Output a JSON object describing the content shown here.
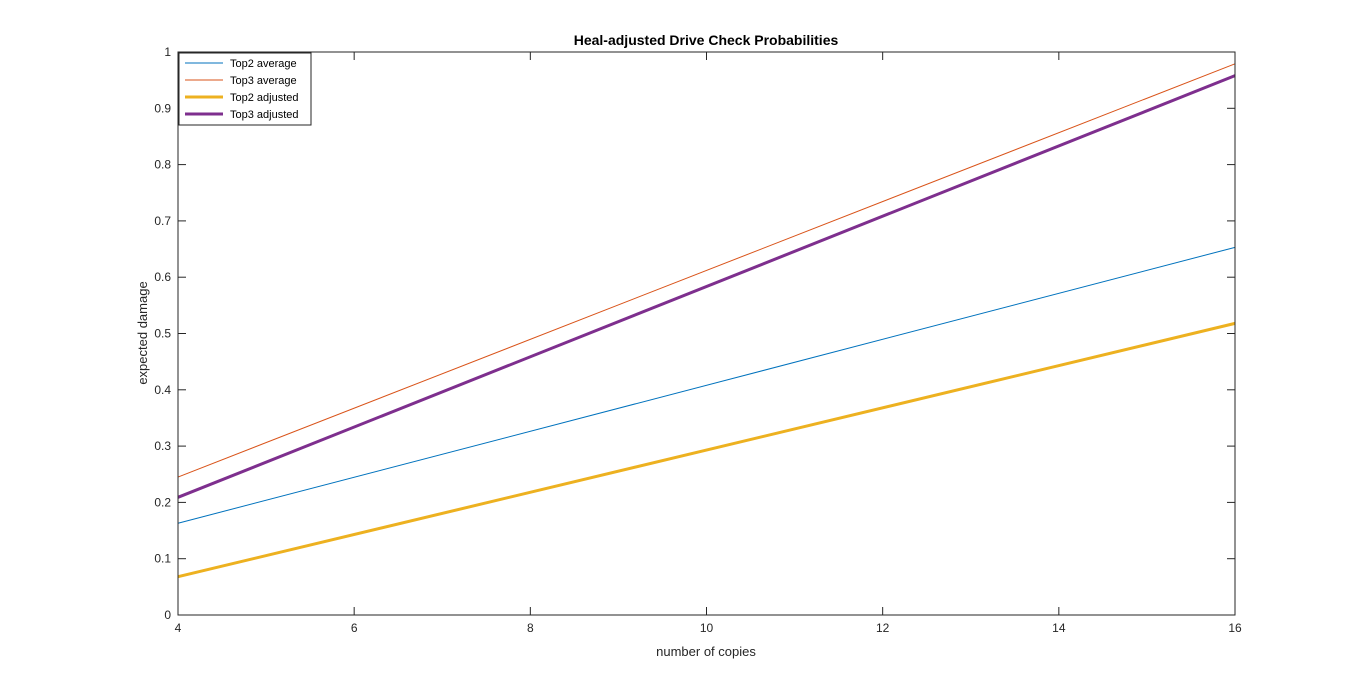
{
  "chart_data": {
    "type": "line",
    "title": "Heal-adjusted Drive Check Probabilities",
    "xlabel": "number of copies",
    "ylabel": "expected damage",
    "xlim": [
      4,
      16
    ],
    "ylim": [
      0,
      1
    ],
    "xticks": [
      4,
      6,
      8,
      10,
      12,
      14,
      16
    ],
    "yticks": [
      0,
      0.1,
      0.2,
      0.3,
      0.4,
      0.5,
      0.6,
      0.7,
      0.8,
      0.9,
      1
    ],
    "grid": false,
    "legend_location": "top-left",
    "series": [
      {
        "name": "Top2 average",
        "color": "#0072BD",
        "line_weight": "thin",
        "x": [
          4,
          16
        ],
        "y": [
          0.163,
          0.653
        ]
      },
      {
        "name": "Top3 average",
        "color": "#D95319",
        "line_weight": "thin",
        "x": [
          4,
          16
        ],
        "y": [
          0.245,
          0.979
        ]
      },
      {
        "name": "Top2 adjusted",
        "color": "#EDB120",
        "line_weight": "thick",
        "x": [
          4,
          16
        ],
        "y": [
          0.068,
          0.518
        ]
      },
      {
        "name": "Top3 adjusted",
        "color": "#7E2F8E",
        "line_weight": "thick",
        "x": [
          4,
          16
        ],
        "y": [
          0.209,
          0.958
        ]
      }
    ]
  }
}
